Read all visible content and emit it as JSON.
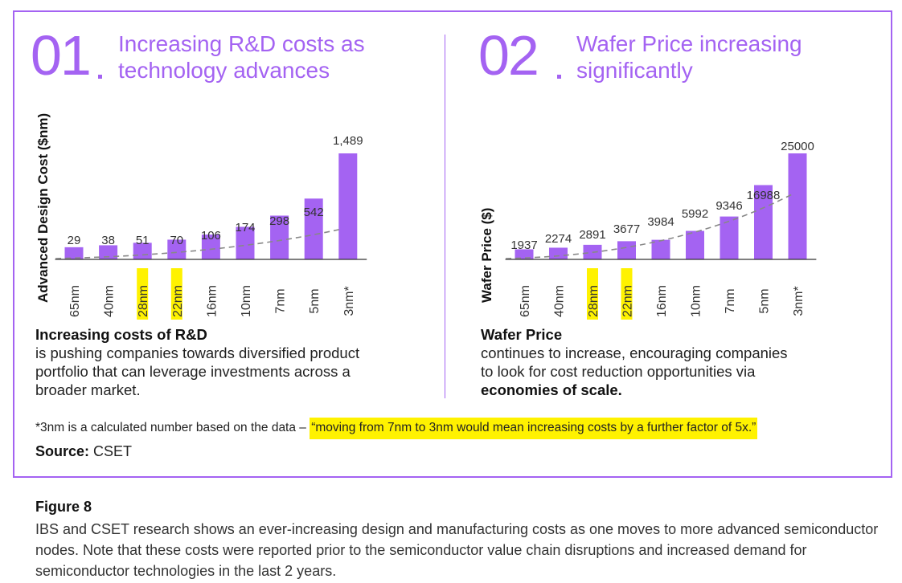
{
  "panel1": {
    "number": "01",
    "title_line1": "Increasing R&D costs as",
    "title_line2": "technology advances",
    "ylabel": "Advanced Design Cost ($nm)",
    "desc_title": "Increasing costs of R&D",
    "desc_lines": [
      "is pushing companies towards diversified product",
      "portfolio that can leverage investments across a",
      "broader market."
    ]
  },
  "panel2": {
    "number": "02",
    "title_line1": "Wafer Price increasing",
    "title_line2": "significantly",
    "ylabel": "Wafer Price ($)",
    "desc_title": "Wafer Price",
    "desc_lines": [
      "continues to increase, encouraging companies",
      "to look for cost reduction opportunities via"
    ],
    "desc_bold": "economies of scale."
  },
  "footnote": {
    "prefix": "*3nm is a calculated number based on the data – ",
    "quote": "“moving from 7nm to 3nm would mean increasing costs by a further factor of 5x.”"
  },
  "source": {
    "label": "Source:",
    "value": " CSET"
  },
  "caption": {
    "title": "Figure 8",
    "text": "IBS and CSET research shows an ever-increasing design and manufacturing costs as one moves to more advanced semiconductor nodes. Note that these costs were reported prior to the semiconductor value chain disruptions and increased demand for semiconductor technologies in the last 2 years."
  },
  "colors": {
    "accent": "#a463f2",
    "highlight": "#fff200",
    "trend": "#888888"
  },
  "chart_data": [
    {
      "type": "bar",
      "title": "Increasing R&D costs as technology advances",
      "ylabel": "Advanced Design Cost ($nm)",
      "xlabel": "",
      "categories": [
        "65nm",
        "40nm",
        "28nm",
        "22nm",
        "16nm",
        "10nm",
        "7nm",
        "5nm",
        "3nm*"
      ],
      "values": [
        29,
        38,
        51,
        70,
        106,
        174,
        298,
        542,
        1489
      ],
      "value_labels": [
        "29",
        "38",
        "51",
        "70",
        "106",
        "174",
        "298",
        "542",
        "1,489"
      ],
      "highlighted": [
        "28nm",
        "22nm"
      ],
      "trendline": "dashed",
      "ylim": [
        0,
        1489
      ]
    },
    {
      "type": "bar",
      "title": "Wafer Price increasing significantly",
      "ylabel": "Wafer Price ($)",
      "xlabel": "",
      "categories": [
        "65nm",
        "40nm",
        "28nm",
        "22nm",
        "16nm",
        "10nm",
        "7nm",
        "5nm",
        "3nm*"
      ],
      "values": [
        1937,
        2274,
        2891,
        3677,
        3984,
        5992,
        9346,
        16988,
        25000
      ],
      "value_labels": [
        "1937",
        "2274",
        "2891",
        "3677",
        "3984",
        "5992",
        "9346",
        "16988",
        "25000"
      ],
      "highlighted": [
        "28nm",
        "22nm"
      ],
      "trendline": "dashed",
      "ylim": [
        0,
        25000
      ]
    }
  ]
}
